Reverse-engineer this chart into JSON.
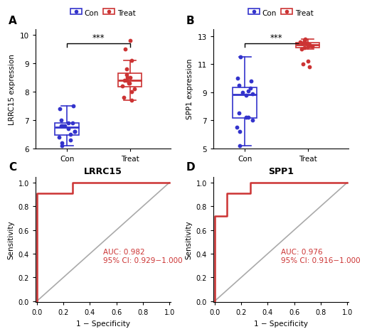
{
  "panel_A": {
    "ylabel": "LRRC15 expression",
    "con_data": [
      6.8,
      6.6,
      6.5,
      6.9,
      6.8,
      7.0,
      7.4,
      7.5,
      6.7,
      6.3,
      6.4,
      6.6,
      6.9,
      6.8,
      6.2,
      6.1
    ],
    "treat_data": [
      8.4,
      8.5,
      8.3,
      8.6,
      8.0,
      7.8,
      8.8,
      8.5,
      8.3,
      8.1,
      9.5,
      9.8,
      9.1,
      8.2,
      7.7,
      8.4
    ],
    "con_color": "#3333cc",
    "treat_color": "#cc3333",
    "ylim": [
      6.0,
      10.2
    ],
    "yticks": [
      6,
      7,
      8,
      9,
      10
    ],
    "significance": "***"
  },
  "panel_B": {
    "ylabel": "SPP1 expression",
    "con_data": [
      9.0,
      8.9,
      9.1,
      7.2,
      7.5,
      9.5,
      10.0,
      9.8,
      8.8,
      7.2,
      6.5,
      7.0,
      9.3,
      11.5,
      6.2,
      5.2
    ],
    "treat_data": [
      12.2,
      12.3,
      12.5,
      12.6,
      12.4,
      12.1,
      12.7,
      12.8,
      12.5,
      12.3,
      11.0,
      11.2,
      10.8,
      12.6,
      12.4,
      12.5
    ],
    "con_color": "#3333cc",
    "treat_color": "#cc3333",
    "ylim": [
      5.0,
      13.5
    ],
    "yticks": [
      5,
      7,
      9,
      11,
      13
    ],
    "significance": "***"
  },
  "panel_C": {
    "title": "LRRC15",
    "auc_text": "AUC: 0.982\n95% CI: 0.929−1.000",
    "roc_x": [
      0.0,
      0.0,
      0.0,
      0.27,
      0.27,
      1.0
    ],
    "roc_y": [
      0.0,
      0.09,
      0.91,
      0.91,
      1.0,
      1.0
    ],
    "curve_color": "#cc3333",
    "diag_color": "#aaaaaa"
  },
  "panel_D": {
    "title": "SPP1",
    "auc_text": "AUC: 0.976\n95% CI: 0.916−1.000",
    "roc_x": [
      0.0,
      0.0,
      0.09,
      0.09,
      0.27,
      0.27,
      1.0
    ],
    "roc_y": [
      0.0,
      0.72,
      0.72,
      0.91,
      0.91,
      1.0,
      1.0
    ],
    "curve_color": "#cc3333",
    "diag_color": "#aaaaaa"
  },
  "con_color": "#3333cc",
  "treat_color": "#cc3333",
  "background_color": "#ffffff"
}
